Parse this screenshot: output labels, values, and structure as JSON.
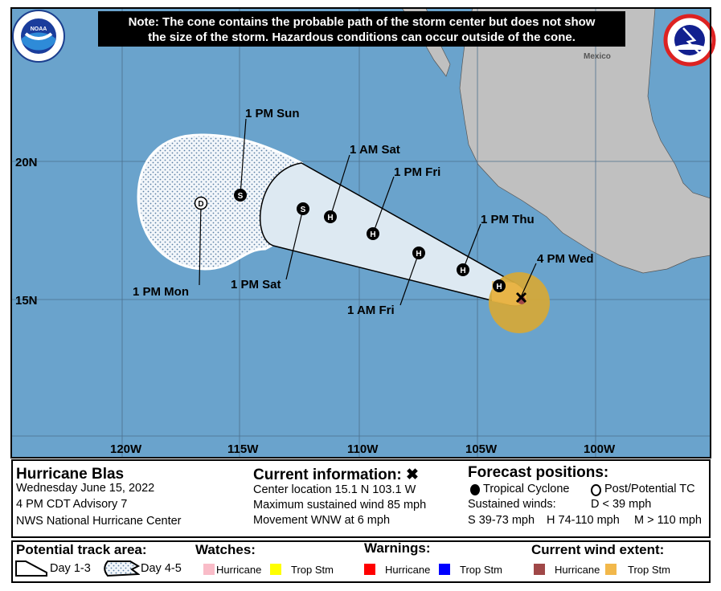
{
  "note": {
    "line1": "Note: The cone contains the probable path of the storm center but does not show",
    "line2": "the size of the storm. Hazardous conditions can occur outside of the cone."
  },
  "map": {
    "country_label": "Mexico",
    "lon_labels": [
      "120W",
      "115W",
      "110W",
      "105W",
      "100W"
    ],
    "lat_labels": [
      "20N",
      "15N"
    ],
    "colors": {
      "ocean": "#6aa3cc",
      "land": "#c0c0c0",
      "cone": "#dde9f2",
      "trop_stm_wind": "#d4a93a"
    },
    "track": [
      {
        "label": "4 PM Wed",
        "symbol": "X"
      },
      {
        "label": "",
        "symbol": "H"
      },
      {
        "label": "1 PM Thu",
        "symbol": "H"
      },
      {
        "label": "1 AM Fri",
        "symbol": "H"
      },
      {
        "label": "1 PM Fri",
        "symbol": "H"
      },
      {
        "label": "1 AM Sat",
        "symbol": "H"
      },
      {
        "label": "1 PM Sat",
        "symbol": "S"
      },
      {
        "label": "1 PM Sun",
        "symbol": "S"
      },
      {
        "label": "1 PM Mon",
        "symbol": "D"
      }
    ],
    "logos": {
      "left": "NOAA",
      "right": "NATIONAL WEATHER SERVICE"
    }
  },
  "info": {
    "storm_name": "Hurricane Blas",
    "date": "Wednesday June 15, 2022",
    "advisory": "4 PM CDT Advisory 7",
    "center": "NWS National Hurricane Center",
    "current_title": "Current information: ✖",
    "location": "Center location 15.1 N 103.1 W",
    "max_wind": "Maximum sustained wind 85 mph",
    "movement": "Movement WNW at 6 mph",
    "forecast_title": "Forecast positions:",
    "tropical_cyclone": "Tropical Cyclone",
    "post_potential": "Post/Potential TC",
    "sustained_winds": "Sustained winds:",
    "d_range": "D < 39 mph",
    "s_range": "S 39-73 mph",
    "h_range": "H 74-110 mph",
    "m_range": "M > 110 mph"
  },
  "legend": {
    "track_title": "Potential track area:",
    "day13": "Day 1-3",
    "day45": "Day 4-5",
    "watches_title": "Watches:",
    "warnings_title": "Warnings:",
    "wind_title": "Current wind extent:",
    "hurricane": "Hurricane",
    "trop_stm": "Trop Stm",
    "colors": {
      "watch_hurricane": "#f9bcc8",
      "watch_trop": "#ffff00",
      "warn_hurricane": "#ff0000",
      "warn_trop": "#0000ff",
      "wind_hurricane": "#a04848",
      "wind_trop": "#f2b84b"
    }
  }
}
